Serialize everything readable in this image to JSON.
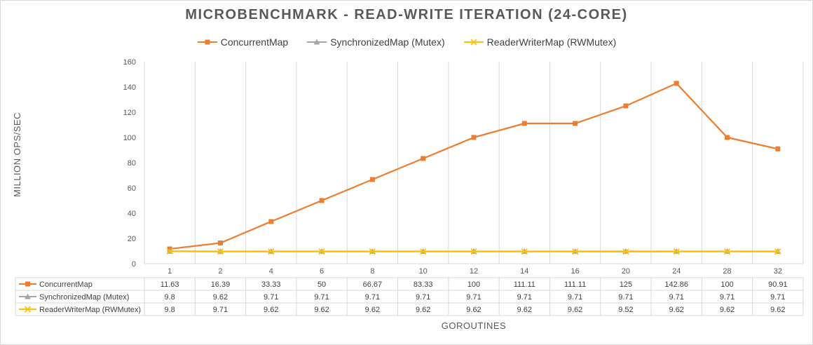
{
  "chart_data": {
    "type": "line",
    "title": "MICROBENCHMARK - READ-WRITE ITERATION (24-CORE)",
    "xlabel": "GOROUTINES",
    "ylabel": "MILLION OPS/SEC",
    "categories": [
      "1",
      "2",
      "4",
      "6",
      "8",
      "10",
      "12",
      "14",
      "16",
      "20",
      "24",
      "28",
      "32"
    ],
    "ylim": [
      0,
      160
    ],
    "yticks": [
      "0",
      "20",
      "40",
      "60",
      "80",
      "100",
      "120",
      "140",
      "160"
    ],
    "grid": "vertical",
    "legend": "top",
    "data_table": true,
    "series": [
      {
        "name": "ConcurrentMap",
        "color": "#ED7D31",
        "marker": "square",
        "values": [
          11.63,
          16.39,
          33.33,
          50,
          66.67,
          83.33,
          100,
          111.11,
          111.11,
          125,
          142.86,
          100,
          90.91
        ],
        "labels": [
          "11.63",
          "16.39",
          "33.33",
          "50",
          "66.67",
          "83.33",
          "100",
          "111.11",
          "111.11",
          "125",
          "142.86",
          "100",
          "90.91"
        ]
      },
      {
        "name": "SynchronizedMap (Mutex)",
        "color": "#A5A5A5",
        "marker": "triangle",
        "values": [
          9.8,
          9.62,
          9.71,
          9.71,
          9.71,
          9.71,
          9.71,
          9.71,
          9.71,
          9.71,
          9.71,
          9.71,
          9.71
        ],
        "labels": [
          "9.8",
          "9.62",
          "9.71",
          "9.71",
          "9.71",
          "9.71",
          "9.71",
          "9.71",
          "9.71",
          "9.71",
          "9.71",
          "9.71",
          "9.71"
        ]
      },
      {
        "name": "ReaderWriterMap (RWMutex)",
        "color": "#FFC000",
        "marker": "x",
        "values": [
          9.8,
          9.71,
          9.62,
          9.62,
          9.62,
          9.62,
          9.62,
          9.62,
          9.62,
          9.52,
          9.62,
          9.62,
          9.62
        ],
        "labels": [
          "9.8",
          "9.71",
          "9.62",
          "9.62",
          "9.62",
          "9.62",
          "9.62",
          "9.62",
          "9.62",
          "9.52",
          "9.62",
          "9.62",
          "9.62"
        ]
      }
    ]
  }
}
